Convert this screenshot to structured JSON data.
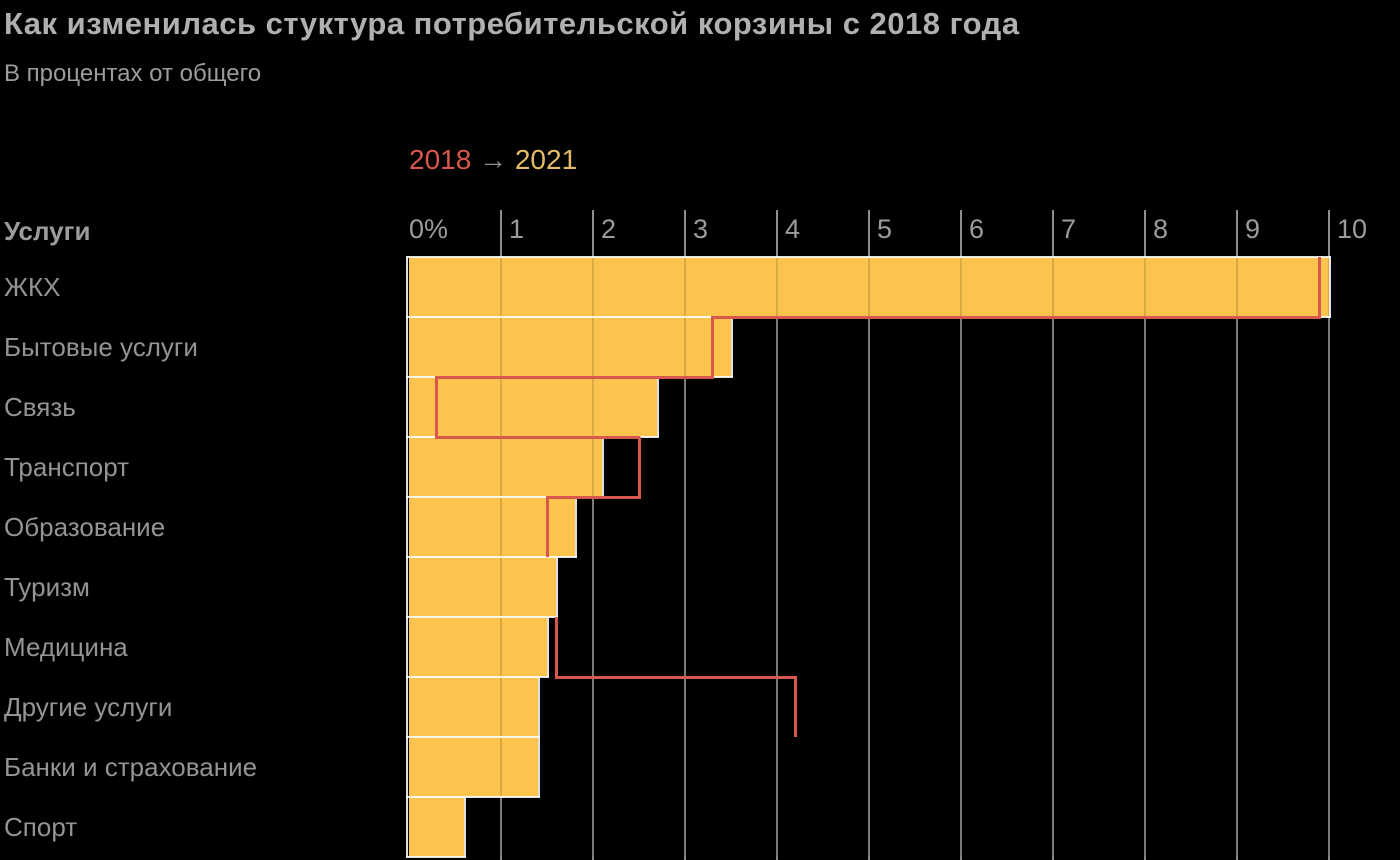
{
  "header": {
    "title": "Как изменилась стуктура потребительской корзины с 2018 года",
    "subtitle": "В процентах от общего"
  },
  "legend": {
    "from_label": "2018",
    "arrow": "→",
    "to_label": "2021",
    "position": "top"
  },
  "axis": {
    "column_header": "Услуги",
    "tick_labels": [
      "0%",
      "1",
      "2",
      "3",
      "4",
      "5",
      "6",
      "7",
      "8",
      "9",
      "10"
    ],
    "min": 0,
    "max": 10
  },
  "chart_data": {
    "type": "bar",
    "orientation": "horizontal",
    "title": "Как изменилась стуктура потребительской корзины с 2018 года",
    "subtitle": "В процентах от общего",
    "categories": [
      "ЖКХ",
      "Бытовые услуги",
      "Связь",
      "Транспорт",
      "Образование",
      "Туризм",
      "Медицина",
      "Другие услуги",
      "Банки и страхование",
      "Спорт"
    ],
    "series": [
      {
        "name": "2018",
        "style": "step-outline-line",
        "values": [
          9.9,
          3.3,
          0.3,
          2.5,
          1.5,
          null,
          1.6,
          4.2,
          null,
          null
        ]
      },
      {
        "name": "2021",
        "style": "filled-bar",
        "values": [
          10.0,
          3.5,
          2.7,
          2.1,
          1.8,
          1.6,
          1.5,
          1.4,
          1.4,
          0.6
        ]
      }
    ],
    "xlim": [
      0,
      10
    ],
    "x_tick_labels": [
      "0%",
      "1",
      "2",
      "3",
      "4",
      "5",
      "6",
      "7",
      "8",
      "9",
      "10"
    ],
    "grid": true,
    "value_unit": "% от общего"
  },
  "colors": {
    "background": "#000000",
    "bar_2021": "#fcc34d",
    "line_2018": "#d8584e",
    "grid": "#8d8d8d",
    "grid_on_bar": "rgba(0,0,0,0.13)",
    "separator": "rgba(255,255,255,0.88)",
    "title_text": "#b0b0b0",
    "subtitle_text": "#9c9c9c",
    "axis_text": "#9c9c9c",
    "category_text": "#949494",
    "legend_2018_text": "#d8584e",
    "legend_2021_text": "#e4bb66",
    "legend_arrow": "#8d8d8d"
  }
}
